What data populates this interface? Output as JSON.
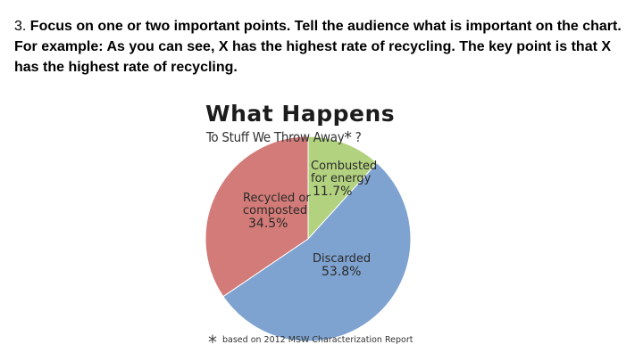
{
  "slide": {
    "lead": "3. ",
    "body": "Focus on one or two important points. Tell the audience what is important on the chart. For example: As you can see, X has the highest rate of recycling. The key point is that X has the highest rate of recycling."
  },
  "chart_data": {
    "type": "pie",
    "title": "What Happens",
    "subtitle": "To Stuff We Throw Away",
    "subtitle_mark": "*",
    "subtitle_suffix": " ?",
    "slices": [
      {
        "label": [
          "Combusted",
          "for energy"
        ],
        "value": 11.7,
        "value_label": "11.7%",
        "color": "#b3d280"
      },
      {
        "label": [
          "Discarded"
        ],
        "value": 53.8,
        "value_label": "53.8%",
        "color": "#7fa3d1"
      },
      {
        "label": [
          "Recycled or",
          "composted"
        ],
        "value": 34.5,
        "value_label": "34.5%",
        "color": "#d27b78"
      }
    ],
    "start_angle_deg": 0,
    "direction": "clockwise",
    "footnote_mark": "*",
    "footnote": "based on 2012 MSW Characterization Report"
  }
}
